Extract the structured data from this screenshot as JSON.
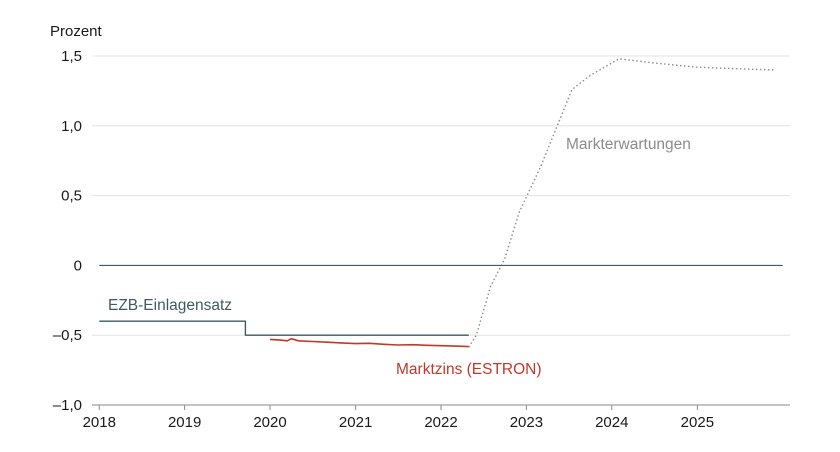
{
  "chart_data": {
    "type": "line",
    "ylabel": "Prozent",
    "ylim": [
      -1.0,
      1.5
    ],
    "xlim": [
      "2017-12-01",
      "2026-02-01"
    ],
    "y_ticks": [
      -1.0,
      -0.5,
      0,
      0.5,
      1.0,
      1.5
    ],
    "y_tick_labels": [
      "–1,0",
      "–0,5",
      "0",
      "0,5",
      "1,0",
      "1,5"
    ],
    "x_tick_labels": [
      "2018",
      "2019",
      "2020",
      "2021",
      "2022",
      "2023",
      "2024",
      "2025"
    ],
    "grid": true,
    "colors": {
      "ezb": "#3d5a66",
      "estron": "#c0392b",
      "market": "#8c8c8c",
      "zero": "#3d5a66",
      "grid": "#e3e3e3",
      "text": "#1a1a1a"
    },
    "series": [
      {
        "key": "ezb",
        "name": "EZB-Einlagensatz",
        "style": "step",
        "points": [
          [
            "2018-01-01",
            -0.4
          ],
          [
            "2019-09-18",
            -0.4
          ],
          [
            "2019-09-18",
            -0.5
          ],
          [
            "2022-04-30",
            -0.5
          ]
        ]
      },
      {
        "key": "estron",
        "name": "Marktzins (ESTRON)",
        "style": "line",
        "points": [
          [
            "2020-01-01",
            -0.53
          ],
          [
            "2020-02-15",
            -0.535
          ],
          [
            "2020-03-15",
            -0.54
          ],
          [
            "2020-04-01",
            -0.525
          ],
          [
            "2020-05-01",
            -0.54
          ],
          [
            "2020-07-01",
            -0.545
          ],
          [
            "2020-09-01",
            -0.55
          ],
          [
            "2020-11-01",
            -0.555
          ],
          [
            "2021-01-01",
            -0.56
          ],
          [
            "2021-03-01",
            -0.558
          ],
          [
            "2021-05-01",
            -0.565
          ],
          [
            "2021-07-01",
            -0.57
          ],
          [
            "2021-09-01",
            -0.568
          ],
          [
            "2021-11-01",
            -0.572
          ],
          [
            "2022-01-01",
            -0.575
          ],
          [
            "2022-03-01",
            -0.578
          ],
          [
            "2022-04-30",
            -0.582
          ]
        ]
      },
      {
        "key": "market",
        "name": "Markterwartungen",
        "style": "dotted",
        "points": [
          [
            "2022-04-30",
            -0.585
          ],
          [
            "2022-06-01",
            -0.5
          ],
          [
            "2022-08-01",
            -0.15
          ],
          [
            "2022-10-01",
            0.05
          ],
          [
            "2022-12-01",
            0.38
          ],
          [
            "2023-03-01",
            0.7
          ],
          [
            "2023-05-01",
            0.95
          ],
          [
            "2023-07-15",
            1.26
          ],
          [
            "2023-10-01",
            1.36
          ],
          [
            "2024-02-01",
            1.48
          ],
          [
            "2024-07-01",
            1.45
          ],
          [
            "2025-01-01",
            1.42
          ],
          [
            "2025-06-01",
            1.41
          ],
          [
            "2025-12-01",
            1.4
          ]
        ]
      },
      {
        "key": "zero",
        "style": "baseline",
        "points": [
          [
            "2018-01-01",
            0
          ],
          [
            "2026-01-01",
            0
          ]
        ]
      }
    ]
  }
}
